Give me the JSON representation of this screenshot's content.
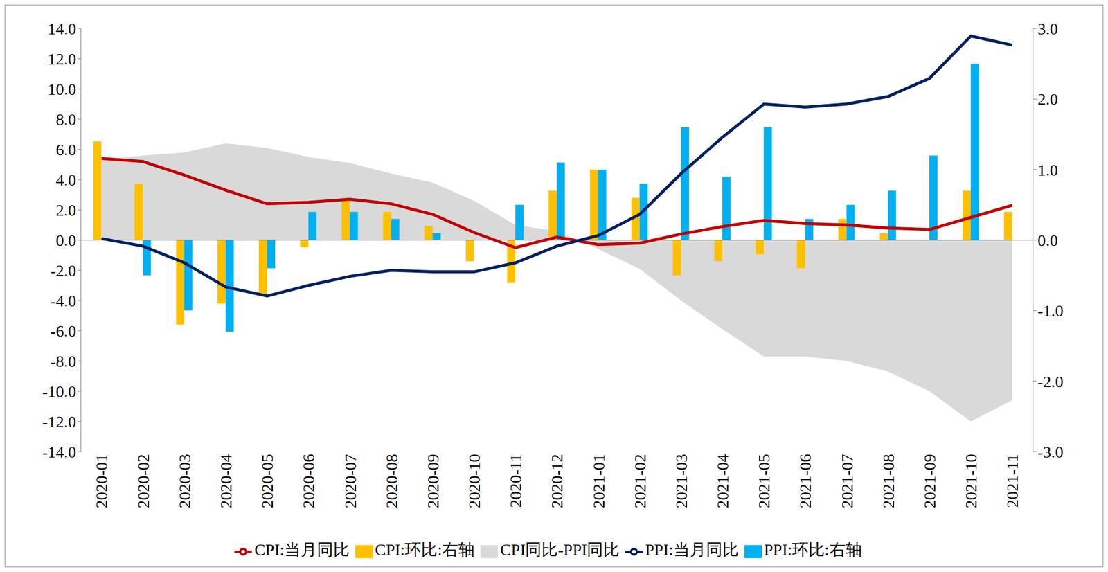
{
  "chart_data": {
    "type": "combo",
    "categories": [
      "2020-01",
      "2020-02",
      "2020-03",
      "2020-04",
      "2020-05",
      "2020-06",
      "2020-07",
      "2020-08",
      "2020-09",
      "2020-10",
      "2020-11",
      "2020-12",
      "2021-01",
      "2021-02",
      "2021-03",
      "2021-04",
      "2021-05",
      "2021-06",
      "2021-07",
      "2021-08",
      "2021-09",
      "2021-10",
      "2021-11"
    ],
    "ylim": [
      -14,
      14
    ],
    "yticks": [
      {
        "value": -14,
        "label": "-14.0"
      },
      {
        "value": -12,
        "label": "-12.0"
      },
      {
        "value": -10,
        "label": "-10.0"
      },
      {
        "value": -8,
        "label": "-8.0"
      },
      {
        "value": -6,
        "label": "-6.0"
      },
      {
        "value": -4,
        "label": "-4.0"
      },
      {
        "value": -2,
        "label": "-2.0"
      },
      {
        "value": 0,
        "label": "0.0"
      },
      {
        "value": 2,
        "label": "2.0"
      },
      {
        "value": 4,
        "label": "4.0"
      },
      {
        "value": 6,
        "label": "6.0"
      },
      {
        "value": 8,
        "label": "8.0"
      },
      {
        "value": 10,
        "label": "10.0"
      },
      {
        "value": 12,
        "label": "12.0"
      },
      {
        "value": 14,
        "label": "14.0"
      }
    ],
    "y2lim": [
      -3,
      3
    ],
    "y2ticks": [
      {
        "value": -3,
        "label": "-3.0"
      },
      {
        "value": -2,
        "label": "-2.0"
      },
      {
        "value": -1,
        "label": "-1.0"
      },
      {
        "value": 0,
        "label": "0.0"
      },
      {
        "value": 1,
        "label": "1.0"
      },
      {
        "value": 2,
        "label": "2.0"
      },
      {
        "value": 3,
        "label": "3.0"
      }
    ],
    "grid": false,
    "legend": "bottom",
    "series": [
      {
        "name": "CPI同比-PPI同比",
        "type": "area",
        "color": "#d9d9d9",
        "axis": "y",
        "values": [
          5.3,
          5.6,
          5.8,
          6.4,
          6.1,
          5.5,
          5.1,
          4.4,
          3.8,
          2.6,
          1.0,
          0.6,
          -0.6,
          -1.9,
          -4.0,
          -5.9,
          -7.7,
          -7.7,
          -8.0,
          -8.7,
          -10.0,
          -12.0,
          -10.6
        ]
      },
      {
        "name": "CPI:环比:右轴",
        "type": "bar",
        "color": "#ffc000",
        "axis": "y2",
        "values": [
          1.4,
          0.8,
          -1.2,
          -0.9,
          -0.8,
          -0.1,
          0.6,
          0.4,
          0.2,
          -0.3,
          -0.6,
          0.7,
          1.0,
          0.6,
          -0.5,
          -0.3,
          -0.2,
          -0.4,
          0.3,
          0.1,
          0.0,
          0.7,
          0.4
        ]
      },
      {
        "name": "PPI:环比:右轴",
        "type": "bar",
        "color": "#00b0f0",
        "axis": "y2",
        "values": [
          0.0,
          -0.5,
          -1.0,
          -1.3,
          -0.4,
          0.4,
          0.4,
          0.3,
          0.1,
          0.0,
          0.5,
          1.1,
          1.0,
          0.8,
          1.6,
          0.9,
          1.6,
          0.3,
          0.5,
          0.7,
          1.2,
          2.5,
          0.0
        ]
      },
      {
        "name": "CPI:当月同比",
        "type": "line",
        "color": "#c00000",
        "axis": "y",
        "values": [
          5.4,
          5.2,
          4.3,
          3.3,
          2.4,
          2.5,
          2.7,
          2.4,
          1.7,
          0.5,
          -0.5,
          0.2,
          -0.3,
          -0.2,
          0.4,
          0.9,
          1.3,
          1.1,
          1.0,
          0.8,
          0.7,
          1.5,
          2.3
        ]
      },
      {
        "name": "PPI:当月同比",
        "type": "line",
        "color": "#002060",
        "axis": "y",
        "values": [
          0.1,
          -0.4,
          -1.5,
          -3.1,
          -3.7,
          -3.0,
          -2.4,
          -2.0,
          -2.1,
          -2.1,
          -1.5,
          -0.4,
          0.3,
          1.7,
          4.4,
          6.8,
          9.0,
          8.8,
          9.0,
          9.5,
          10.7,
          13.5,
          12.9
        ]
      }
    ]
  }
}
